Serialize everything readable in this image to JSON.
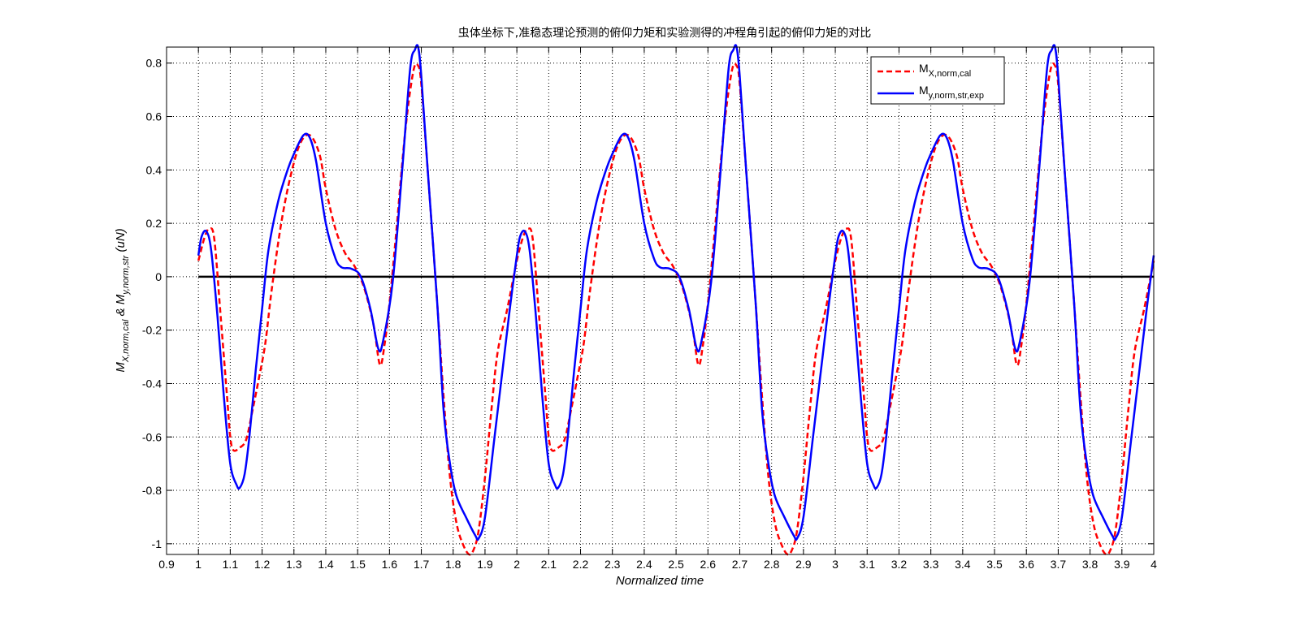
{
  "chart_data": {
    "type": "line",
    "title": "虫体坐标下,准稳态理论预测的俯仰力矩和实验测得的冲程角引起的俯仰力矩的对比",
    "xlabel": "Normalized time",
    "ylabel": {
      "p1": "M",
      "s1": "X,norm,cal",
      "p2": " & M",
      "s2": "y,norm,str",
      "p3": " (uN)"
    },
    "xlim": [
      0.9,
      4.0
    ],
    "ylim": [
      -1.04,
      0.86
    ],
    "xticks": [
      0.9,
      1,
      1.1,
      1.2,
      1.3,
      1.4,
      1.5,
      1.6,
      1.7,
      1.8,
      1.9,
      2,
      2.1,
      2.2,
      2.3,
      2.4,
      2.5,
      2.6,
      2.7,
      2.8,
      2.9,
      3,
      3.1,
      3.2,
      3.3,
      3.4,
      3.5,
      3.6,
      3.7,
      3.8,
      3.9,
      4
    ],
    "xtick_labels": [
      "0.9",
      "1",
      "1.1",
      "1.2",
      "1.3",
      "1.4",
      "1.5",
      "1.6",
      "1.7",
      "1.8",
      "1.9",
      "2",
      "2.1",
      "2.2",
      "2.3",
      "2.4",
      "2.5",
      "2.6",
      "2.7",
      "2.8",
      "2.9",
      "3",
      "3.1",
      "3.2",
      "3.3",
      "3.4",
      "3.5",
      "3.6",
      "3.7",
      "3.8",
      "3.9",
      "4"
    ],
    "yticks": [
      -1,
      -0.8,
      -0.6,
      -0.4,
      -0.2,
      0,
      0.2,
      0.4,
      0.6,
      0.8
    ],
    "ytick_labels": [
      "-1",
      "-0.8",
      "-0.6",
      "-0.4",
      "-0.2",
      "0",
      "0.2",
      "0.4",
      "0.6",
      "0.8"
    ],
    "grid": true,
    "legend_position": "top-right",
    "zero_line": true,
    "period": 1.0,
    "series": [
      {
        "name": "M",
        "legend_sub": "X,norm,cal",
        "color": "#ff0000",
        "style": "dashed",
        "cycle": [
          [
            0.0,
            0.06
          ],
          [
            0.02,
            0.15
          ],
          [
            0.035,
            0.18
          ],
          [
            0.05,
            0.14
          ],
          [
            0.07,
            -0.15
          ],
          [
            0.09,
            -0.45
          ],
          [
            0.1,
            -0.6
          ],
          [
            0.11,
            -0.65
          ],
          [
            0.13,
            -0.64
          ],
          [
            0.15,
            -0.61
          ],
          [
            0.17,
            -0.5
          ],
          [
            0.19,
            -0.38
          ],
          [
            0.21,
            -0.25
          ],
          [
            0.23,
            -0.05
          ],
          [
            0.26,
            0.2
          ],
          [
            0.29,
            0.38
          ],
          [
            0.32,
            0.5
          ],
          [
            0.35,
            0.53
          ],
          [
            0.38,
            0.46
          ],
          [
            0.4,
            0.33
          ],
          [
            0.43,
            0.18
          ],
          [
            0.46,
            0.09
          ],
          [
            0.49,
            0.04
          ],
          [
            0.52,
            -0.04
          ],
          [
            0.55,
            -0.18
          ],
          [
            0.57,
            -0.33
          ],
          [
            0.585,
            -0.25
          ],
          [
            0.6,
            -0.1
          ],
          [
            0.62,
            0.15
          ],
          [
            0.65,
            0.55
          ],
          [
            0.675,
            0.77
          ],
          [
            0.69,
            0.79
          ],
          [
            0.7,
            0.72
          ],
          [
            0.72,
            0.4
          ],
          [
            0.75,
            -0.1
          ],
          [
            0.77,
            -0.45
          ],
          [
            0.79,
            -0.75
          ],
          [
            0.81,
            -0.92
          ],
          [
            0.83,
            -1.0
          ],
          [
            0.85,
            -1.04
          ],
          [
            0.865,
            -1.02
          ],
          [
            0.88,
            -0.95
          ],
          [
            0.9,
            -0.75
          ],
          [
            0.92,
            -0.5
          ],
          [
            0.94,
            -0.28
          ],
          [
            0.97,
            -0.12
          ],
          [
            1.0,
            0.06
          ]
        ]
      },
      {
        "name": "M",
        "legend_sub": "y,norm,str,exp",
        "color": "#0000ff",
        "style": "solid",
        "cycle": [
          [
            0.0,
            0.08
          ],
          [
            0.01,
            0.15
          ],
          [
            0.025,
            0.17
          ],
          [
            0.04,
            0.1
          ],
          [
            0.06,
            -0.15
          ],
          [
            0.08,
            -0.45
          ],
          [
            0.1,
            -0.7
          ],
          [
            0.12,
            -0.78
          ],
          [
            0.13,
            -0.79
          ],
          [
            0.145,
            -0.74
          ],
          [
            0.16,
            -0.6
          ],
          [
            0.18,
            -0.35
          ],
          [
            0.2,
            -0.12
          ],
          [
            0.22,
            0.1
          ],
          [
            0.25,
            0.28
          ],
          [
            0.28,
            0.4
          ],
          [
            0.3,
            0.46
          ],
          [
            0.33,
            0.53
          ],
          [
            0.35,
            0.52
          ],
          [
            0.37,
            0.43
          ],
          [
            0.4,
            0.2
          ],
          [
            0.43,
            0.07
          ],
          [
            0.45,
            0.035
          ],
          [
            0.48,
            0.03
          ],
          [
            0.51,
            0.0
          ],
          [
            0.54,
            -0.12
          ],
          [
            0.565,
            -0.27
          ],
          [
            0.58,
            -0.24
          ],
          [
            0.61,
            -0.02
          ],
          [
            0.64,
            0.4
          ],
          [
            0.665,
            0.78
          ],
          [
            0.68,
            0.85
          ],
          [
            0.69,
            0.86
          ],
          [
            0.7,
            0.75
          ],
          [
            0.72,
            0.4
          ],
          [
            0.75,
            -0.1
          ],
          [
            0.77,
            -0.5
          ],
          [
            0.79,
            -0.7
          ],
          [
            0.81,
            -0.82
          ],
          [
            0.84,
            -0.9
          ],
          [
            0.87,
            -0.97
          ],
          [
            0.88,
            -0.98
          ],
          [
            0.9,
            -0.9
          ],
          [
            0.93,
            -0.6
          ],
          [
            0.96,
            -0.3
          ],
          [
            0.98,
            -0.1
          ],
          [
            1.0,
            0.08
          ]
        ]
      }
    ]
  }
}
